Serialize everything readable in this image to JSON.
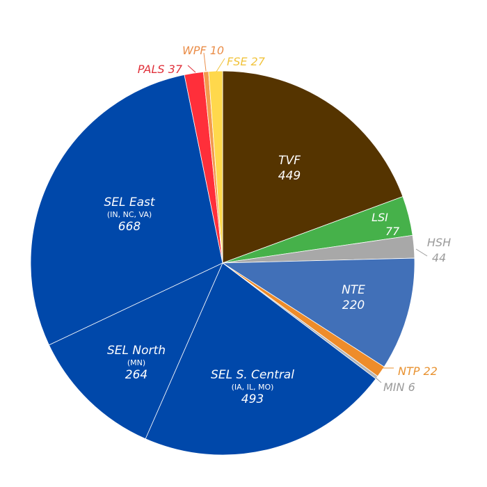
{
  "chart_data": {
    "type": "pie",
    "start": "top, clockwise",
    "slices": [
      {
        "name": "TVF",
        "sub": "",
        "value": 449,
        "color": "#553400",
        "text_color": "#ffffff"
      },
      {
        "name": "LSI",
        "sub": "",
        "value": 77,
        "color": "#46b14a",
        "text_color": "#ffffff"
      },
      {
        "name": "HSH",
        "sub": "",
        "value": 44,
        "color": "#a8a8a8",
        "text_color": "#9a9a9a"
      },
      {
        "name": "NTE",
        "sub": "",
        "value": 220,
        "color": "#4170b8",
        "text_color": "#ffffff"
      },
      {
        "name": "NTP",
        "sub": "",
        "value": 22,
        "color": "#ee8c2a",
        "text_color": "#e8912f"
      },
      {
        "name": "MIN",
        "sub": "",
        "value": 6,
        "color": "#b5b5b5",
        "text_color": "#9a9a9a"
      },
      {
        "name": "SEL S. Central",
        "sub": "(IA, IL, MO)",
        "value": 493,
        "color": "#0048aa",
        "text_color": "#ffffff"
      },
      {
        "name": "SEL North",
        "sub": "(MN)",
        "value": 264,
        "color": "#0048aa",
        "text_color": "#ffffff"
      },
      {
        "name": "SEL East",
        "sub": "(IN, NC, VA)",
        "value": 668,
        "color": "#0048aa",
        "text_color": "#ffffff"
      },
      {
        "name": "PALS",
        "sub": "",
        "value": 37,
        "color": "#ff2f3a",
        "text_color": "#e0303a"
      },
      {
        "name": "WPF",
        "sub": "",
        "value": 10,
        "color": "#f39a4c",
        "text_color": "#ea8d48"
      },
      {
        "name": "FSE",
        "sub": "",
        "value": 27,
        "color": "#ffd84c",
        "text_color": "#f1c33c"
      }
    ]
  }
}
